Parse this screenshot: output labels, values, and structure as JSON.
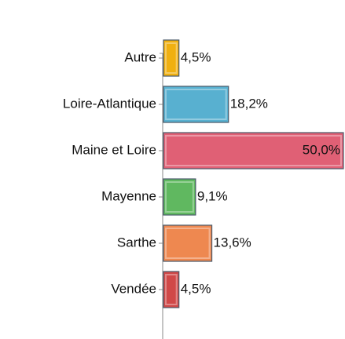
{
  "chart_data": {
    "type": "bar",
    "orientation": "horizontal",
    "categories": [
      "Autre",
      "Loire-Atlantique",
      "Maine et Loire",
      "Mayenne",
      "Sarthe",
      "Vendée"
    ],
    "values": [
      4.5,
      18.2,
      50.0,
      9.1,
      13.6,
      4.5
    ],
    "value_labels": [
      "4,5%",
      "18,2%",
      "50,0%",
      "9,1%",
      "13,6%",
      "4,5%"
    ],
    "colors": [
      "#f0b010",
      "#58b0d0",
      "#e06075",
      "#60b860",
      "#ee8850",
      "#d04848"
    ]
  }
}
